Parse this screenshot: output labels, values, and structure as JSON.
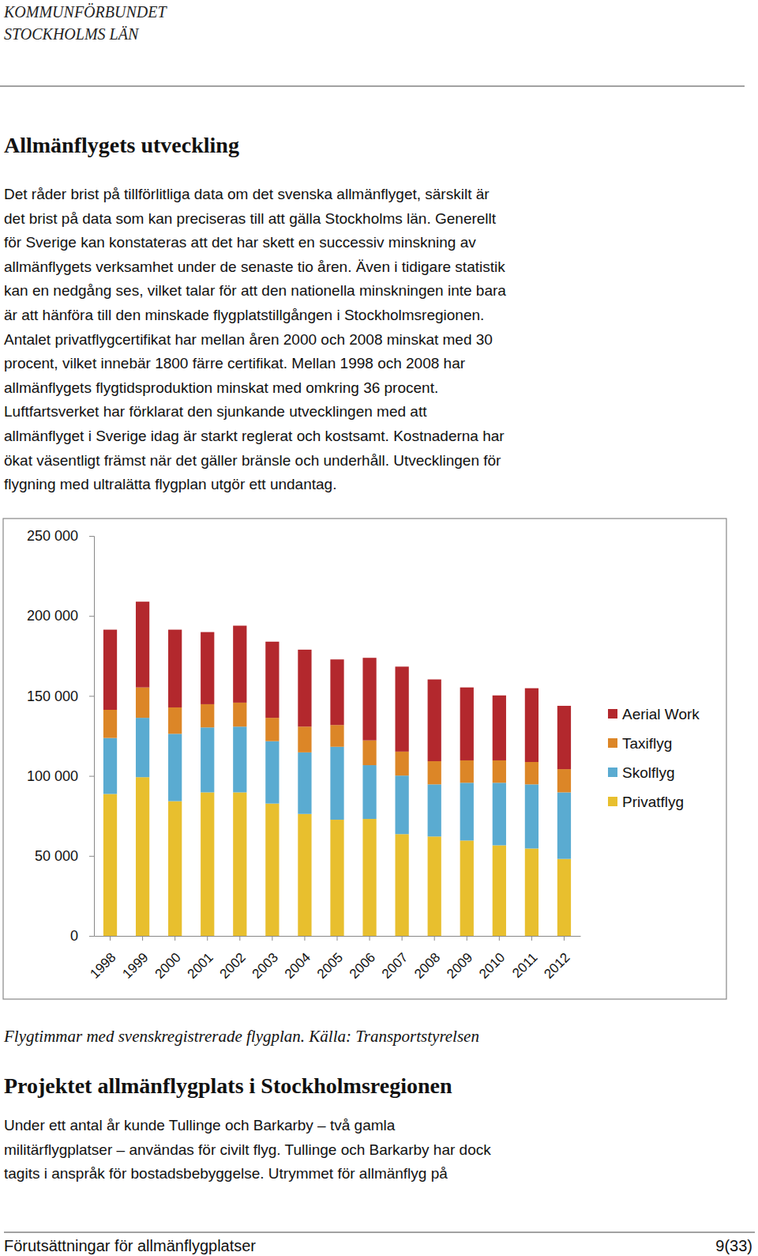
{
  "header": {
    "lines": [
      "KOMMUNFÖRBUNDET",
      "STOCKHOLMS LÄN"
    ]
  },
  "sections": [
    {
      "heading": "Allmänflygets utveckling",
      "lines": [
        "Det råder brist på tillförlitliga data om det svenska allmänflyget, särskilt är",
        "det brist på data som kan preciseras till att gälla Stockholms län. Generellt",
        "för Sverige kan konstateras att det har skett en successiv minskning av",
        "allmänflygets verksamhet under de senaste tio åren. Även i tidigare statistik",
        "kan en nedgång ses, vilket talar för att den nationella minskningen inte bara",
        "är att hänföra till den minskade flygplatstillgången i Stockholmsregionen.",
        "Antalet privatflygcertifikat har mellan åren 2000 och 2008 minskat med 30",
        "procent, vilket innebär 1800 färre certifikat. Mellan 1998 och 2008 har",
        "allmänflygets flygtidsproduktion minskat med omkring 36 procent.",
        "Luftfartsverket har förklarat den sjunkande utvecklingen med att",
        "allmänflyget i Sverige idag är starkt reglerat och kostsamt. Kostnaderna har",
        "ökat väsentligt främst när det gäller bränsle och underhåll. Utvecklingen för",
        "flygning med ultralätta flygplan utgör ett undantag."
      ]
    },
    {
      "heading": "Projektet allmänflygplats i Stockholmsregionen",
      "lines": [
        "Under ett antal år kunde Tullinge och Barkarby – två gamla",
        "militärflygplatser – användas för civilt flyg. Tullinge och Barkarby har dock",
        "tagits i anspråk för bostadsbebyggelse. Utrymmet för allmänflyg på"
      ]
    }
  ],
  "chart_data": {
    "type": "bar",
    "stacked": true,
    "legend": "right",
    "grid": false,
    "categories": [
      "1998",
      "1999",
      "2000",
      "2001",
      "2002",
      "2003",
      "2004",
      "2005",
      "2006",
      "2007",
      "2008",
      "2009",
      "2010",
      "2011",
      "2012"
    ],
    "series": [
      {
        "name": "Privatflyg",
        "color": "#e8bf2e",
        "values": [
          88700,
          99200,
          84200,
          89700,
          89700,
          82700,
          76200,
          72600,
          73100,
          63600,
          62100,
          59600,
          56600,
          54600,
          48100
        ]
      },
      {
        "name": "Skolflyg",
        "color": "#5aabd1",
        "values": [
          35000,
          37100,
          42100,
          40600,
          41100,
          39000,
          38500,
          45600,
          33600,
          36600,
          32600,
          36100,
          39100,
          40100,
          41600
        ]
      },
      {
        "name": "Taxiflyg",
        "color": "#dc8627",
        "values": [
          17600,
          19000,
          16500,
          14500,
          15000,
          14600,
          16100,
          13600,
          15500,
          15000,
          14500,
          14000,
          14000,
          14000,
          14500
        ]
      },
      {
        "name": "Aerial Work",
        "color": "#b3282d",
        "values": [
          50100,
          53600,
          48600,
          45100,
          48100,
          47600,
          48100,
          41000,
          51600,
          53100,
          51100,
          45600,
          40600,
          46100,
          39600
        ]
      }
    ],
    "ylim": [
      0,
      250000
    ],
    "yticks": [
      0,
      {
        "value": 50000,
        "label": "50 000"
      },
      {
        "value": 100000,
        "label": "100 000"
      },
      {
        "value": 150000,
        "label": "150 000"
      },
      {
        "value": 200000,
        "label": "200 000"
      },
      {
        "value": 250000,
        "label": "250 000"
      }
    ]
  },
  "caption": "Flygtimmar med svenskregistrerade flygplan. Källa: Transportstyrelsen",
  "footer": {
    "title": "Förutsättningar för allmänflygplatser",
    "page": "9(33)"
  }
}
